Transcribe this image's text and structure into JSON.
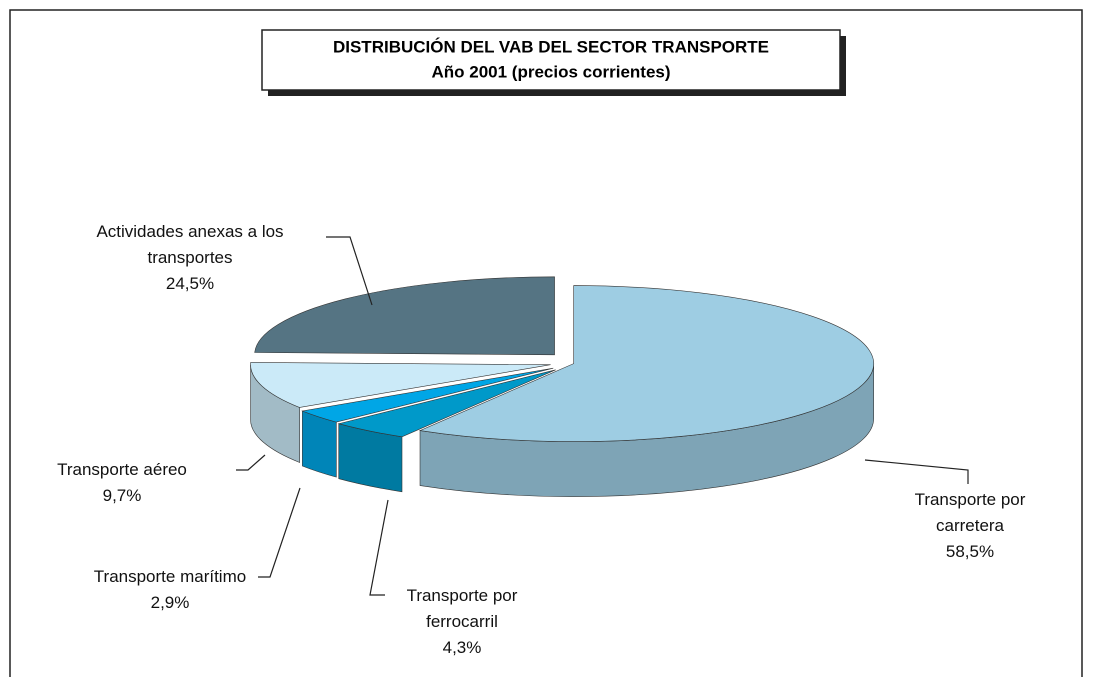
{
  "chart_data": {
    "type": "pie3d",
    "title": "DISTRIBUCIÓN DEL VAB DEL SECTOR TRANSPORTE",
    "subtitle": "Año 2001 (precios corrientes)",
    "categories": [
      "Transporte por carretera",
      "Transporte por ferrocarril",
      "Transporte marítimo",
      "Transporte aéreo",
      "Actividades anexas a los transportes"
    ],
    "values": [
      58.5,
      4.3,
      2.9,
      9.7,
      24.5
    ],
    "value_labels": [
      "58,5%",
      "4,3%",
      "2,9%",
      "9,7%",
      "24,5%"
    ],
    "colors": [
      "#9ecde3",
      "#0099c9",
      "#00a6e6",
      "#cbeaf8",
      "#557483"
    ]
  }
}
